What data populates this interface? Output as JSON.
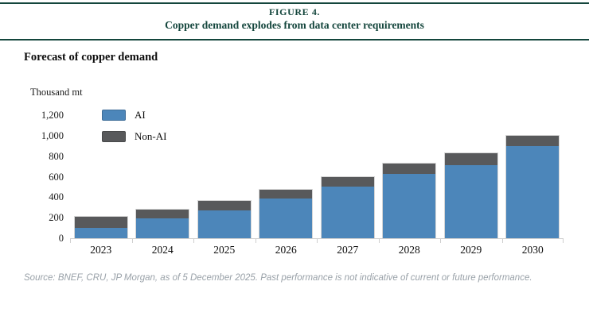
{
  "header": {
    "figure_label": "FIGURE 4.",
    "title": "Copper demand explodes from data center requirements"
  },
  "subtitle": "Forecast of copper demand",
  "chart_data": {
    "type": "bar",
    "stacked": true,
    "unit_label": "Thousand mt",
    "title": "Forecast of copper demand",
    "xlabel": "",
    "ylabel": "Thousand mt",
    "categories": [
      "2023",
      "2024",
      "2025",
      "2026",
      "2027",
      "2028",
      "2029",
      "2030"
    ],
    "series": [
      {
        "name": "AI",
        "color": "#4c86ba",
        "values": [
          100,
          195,
          275,
          385,
          500,
          630,
          715,
          900
        ]
      },
      {
        "name": "Non-AI",
        "color": "#58595b",
        "values": [
          110,
          85,
          90,
          90,
          100,
          100,
          115,
          100
        ]
      }
    ],
    "totals": [
      210,
      280,
      365,
      475,
      600,
      730,
      830,
      1000
    ],
    "ylim": [
      0,
      1200
    ],
    "ytick_labels": [
      "1,200",
      "1,000",
      "800",
      "600",
      "400",
      "200",
      "0"
    ],
    "ytick_values": [
      1200,
      1000,
      800,
      600,
      400,
      200,
      0
    ],
    "grid": false,
    "legend_position": "top-left-inside"
  },
  "source_note": "Source: BNEF, CRU, JP Morgan, as of 5 December 2025. Past performance is not indicative of current or future performance.",
  "colors": {
    "accent_teal": "#14463d",
    "ai_blue": "#4c86ba",
    "non_ai_gray": "#58595b",
    "axis_gray": "#cfcfcf",
    "source_text_gray": "#99a1a8"
  }
}
